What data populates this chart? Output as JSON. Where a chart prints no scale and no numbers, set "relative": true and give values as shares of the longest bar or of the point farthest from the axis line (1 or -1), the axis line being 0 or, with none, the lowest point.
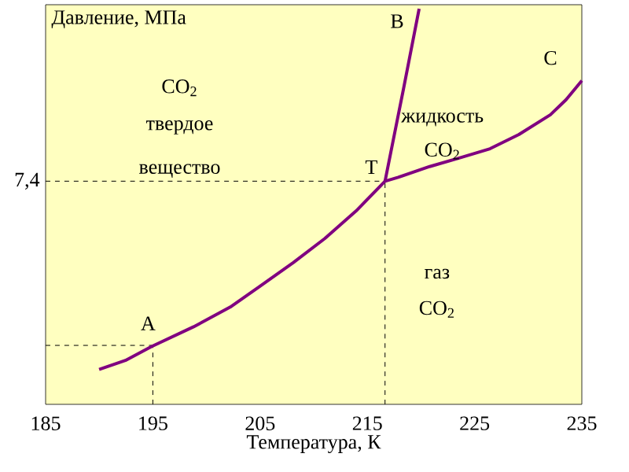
{
  "chart_data": {
    "type": "line",
    "relative": true,
    "xlabel": "Температура, К",
    "ylabel": "Давление, МПа",
    "xlim": [
      185,
      235
    ],
    "xticks": [
      185,
      195,
      205,
      215,
      225,
      235
    ],
    "series": [
      {
        "color": "#800080",
        "x": [
          189.99,
          192.44,
          194.88,
          198.8,
          202.22,
          204.91,
          208.09,
          211.03,
          213.96,
          216.65
        ],
        "values": [
          0.088,
          0.111,
          0.146,
          0.196,
          0.246,
          0.297,
          0.358,
          0.419,
          0.489,
          0.564
        ]
      },
      {
        "color": "#800080",
        "x": [
          216.65,
          218.37,
          219.83
        ],
        "values": [
          0.564,
          0.797,
          1.0
        ]
      },
      {
        "color": "#800080",
        "x": [
          216.65,
          217.88,
          220.81,
          223.75,
          226.44,
          229.13,
          232.07,
          233.53,
          235.0
        ],
        "values": [
          0.564,
          0.574,
          0.601,
          0.624,
          0.646,
          0.682,
          0.732,
          0.77,
          0.818
        ]
      }
    ],
    "ref_lines": [
      {
        "axis": "y",
        "value": 0.564,
        "line_style": "dashed"
      },
      {
        "axis": "x",
        "value": 216.65,
        "line_style": "dashed"
      },
      {
        "axis": "y",
        "value": 0.149,
        "line_style": "dashed"
      },
      {
        "axis": "x",
        "value": 195,
        "line_style": "dashed"
      }
    ],
    "annotations": [
      {
        "text": "A",
        "x": 195,
        "y": 0.149
      },
      {
        "text": "T",
        "x": 216.65,
        "y": 0.564
      },
      {
        "text": "B",
        "x": 219.83,
        "y": 1.0
      },
      {
        "text": "C",
        "x": 232.07,
        "y": 0.732
      },
      "CO$_{2}$",
      "твердое",
      "вещество",
      "жидкость",
      "CO$_{2}$",
      "газ",
      "CO$_{2}$",
      "7,4"
    ]
  }
}
